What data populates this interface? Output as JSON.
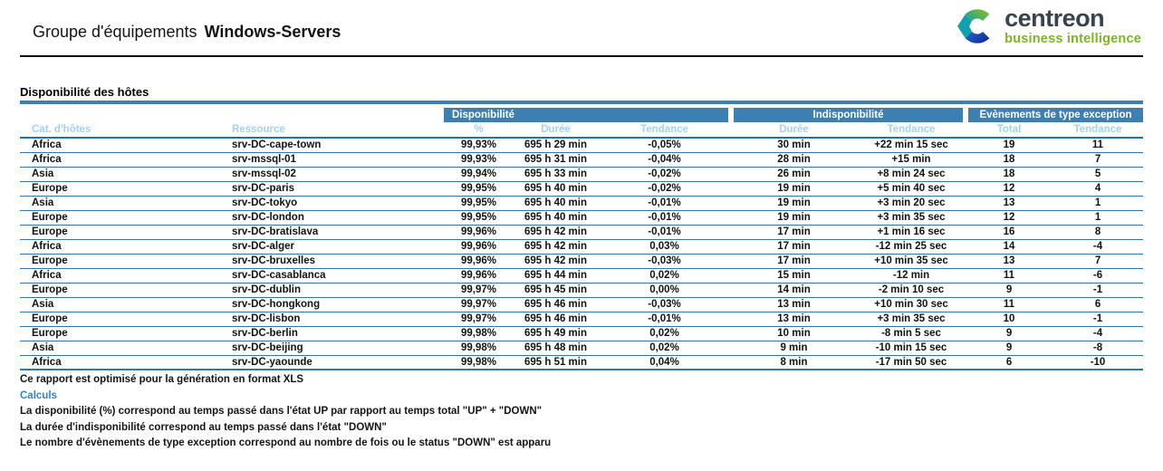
{
  "header": {
    "title_regular": "Groupe d'équipements",
    "title_bold": "Windows-Servers",
    "logo": {
      "name": "centreon",
      "tagline": "business intelligence"
    }
  },
  "section": {
    "title": "Disponibilité des hôtes"
  },
  "table": {
    "group_headers": [
      {
        "label": "Disponibilité",
        "span": 3
      },
      {
        "label": "Indisponibilité",
        "span": 2
      },
      {
        "label": "Evènements de type exception",
        "span": 2
      }
    ],
    "columns": [
      "Cat. d'hôtes",
      "Ressource",
      "%",
      "Durée",
      "Tendance",
      "Durée",
      "Tendance",
      "Total",
      "Tendance"
    ],
    "rows": [
      [
        "Africa",
        "srv-DC-cape-town",
        "99,93%",
        "695 h 29 min",
        "-0,05%",
        "30 min",
        "+22 min 15 sec",
        "19",
        "11"
      ],
      [
        "Africa",
        "srv-mssql-01",
        "99,93%",
        "695 h 31 min",
        "-0,04%",
        "28 min",
        "+15 min",
        "18",
        "7"
      ],
      [
        "Asia",
        "srv-mssql-02",
        "99,94%",
        "695 h 33 min",
        "-0,02%",
        "26 min",
        "+8 min 24 sec",
        "18",
        "5"
      ],
      [
        "Europe",
        "srv-DC-paris",
        "99,95%",
        "695 h 40 min",
        "-0,02%",
        "19 min",
        "+5 min 40 sec",
        "12",
        "4"
      ],
      [
        "Asia",
        "srv-DC-tokyo",
        "99,95%",
        "695 h 40 min",
        "-0,01%",
        "19 min",
        "+3 min 20 sec",
        "13",
        "1"
      ],
      [
        "Europe",
        "srv-DC-london",
        "99,95%",
        "695 h 40 min",
        "-0,01%",
        "19 min",
        "+3 min 35 sec",
        "12",
        "1"
      ],
      [
        "Europe",
        "srv-DC-bratislava",
        "99,96%",
        "695 h 42 min",
        "-0,01%",
        "17 min",
        "+1 min 16 sec",
        "16",
        "8"
      ],
      [
        "Africa",
        "srv-DC-alger",
        "99,96%",
        "695 h 42 min",
        "0,03%",
        "17 min",
        "-12 min 25 sec",
        "14",
        "-4"
      ],
      [
        "Europe",
        "srv-DC-bruxelles",
        "99,96%",
        "695 h 42 min",
        "-0,03%",
        "17 min",
        "+10 min 35 sec",
        "13",
        "7"
      ],
      [
        "Africa",
        "srv-DC-casablanca",
        "99,96%",
        "695 h 44 min",
        "0,02%",
        "15 min",
        "-12 min",
        "11",
        "-6"
      ],
      [
        "Europe",
        "srv-DC-dublin",
        "99,97%",
        "695 h 45 min",
        "0,00%",
        "14 min",
        "-2 min 10 sec",
        "9",
        "-1"
      ],
      [
        "Asia",
        "srv-DC-hongkong",
        "99,97%",
        "695 h 46 min",
        "-0,03%",
        "13 min",
        "+10 min 30 sec",
        "11",
        "6"
      ],
      [
        "Europe",
        "srv-DC-lisbon",
        "99,97%",
        "695 h 46 min",
        "-0,01%",
        "13 min",
        "+3 min 35 sec",
        "10",
        "-1"
      ],
      [
        "Europe",
        "srv-DC-berlin",
        "99,98%",
        "695 h 49 min",
        "0,02%",
        "10 min",
        "-8 min 5 sec",
        "9",
        "-4"
      ],
      [
        "Asia",
        "srv-DC-beijing",
        "99,98%",
        "695 h 48 min",
        "0,02%",
        "9 min",
        "-10 min 15 sec",
        "9",
        "-8"
      ],
      [
        "Africa",
        "srv-DC-yaounde",
        "99,98%",
        "695 h 51 min",
        "0,04%",
        "8 min",
        "-17 min 50 sec",
        "6",
        "-10"
      ]
    ]
  },
  "footer": {
    "note": "Ce rapport est optimisé pour la génération en format XLS",
    "calculs_label": "Calculs",
    "lines": [
      "La disponibilité (%) correspond au temps passé dans l'état UP par rapport au temps total \"UP\" + \"DOWN\"",
      "La durée d'indisponibilité correspond au temps passé dans l'état \"DOWN\"",
      "Le nombre d'évènements de type exception correspond au nombre de fois ou le status \"DOWN\" est apparu"
    ]
  },
  "colors": {
    "table_header_blue": "#3e7fb2",
    "subheader_text_blue": "#a0d3f0",
    "row_line_blue": "#2e76ae",
    "calculs_blue": "#2e86c4",
    "logo_green": "#7db427",
    "logo_teal": "#12a0ae",
    "logo_blue": "#1d3db4",
    "logo_dark_text": "#39434e"
  }
}
